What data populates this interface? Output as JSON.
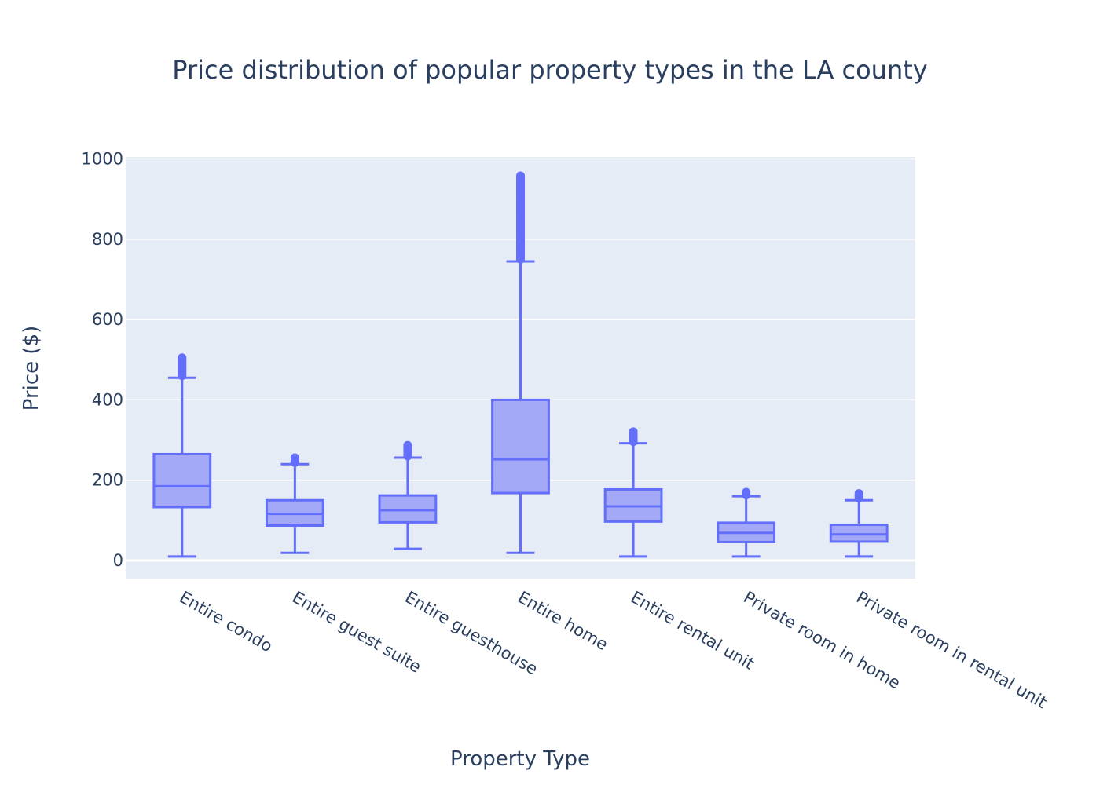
{
  "chart_data": {
    "type": "box",
    "title": "Price distribution of popular property types in the LA county",
    "xlabel": "Property Type",
    "ylabel": "Price ($)",
    "ylim": [
      -45,
      1005
    ],
    "yticks": [
      0,
      200,
      400,
      600,
      800,
      1000
    ],
    "grid": true,
    "legend": "none",
    "colors": {
      "plot_bg": "#E5ECF6",
      "box_line": "#636EFA",
      "box_fill": "#A3A9F6",
      "grid": "#ffffff",
      "text": "#2a3f5f"
    },
    "categories": [
      "Entire condo",
      "Entire guest suite",
      "Entire guesthouse",
      "Entire home",
      "Entire rental unit",
      "Private room in home",
      "Private room in rental unit"
    ],
    "boxes": [
      {
        "category": "Entire condo",
        "min": 10,
        "q1": 133,
        "median": 185,
        "q3": 265,
        "max": 455,
        "outliers_from": 460,
        "outliers_to": 505
      },
      {
        "category": "Entire guest suite",
        "min": 19,
        "q1": 87,
        "median": 116,
        "q3": 150,
        "max": 240,
        "outliers_from": 244,
        "outliers_to": 256
      },
      {
        "category": "Entire guesthouse",
        "min": 29,
        "q1": 95,
        "median": 125,
        "q3": 162,
        "max": 256,
        "outliers_from": 260,
        "outliers_to": 287
      },
      {
        "category": "Entire home",
        "min": 19,
        "q1": 168,
        "median": 252,
        "q3": 400,
        "max": 745,
        "outliers_from": 750,
        "outliers_to": 958
      },
      {
        "category": "Entire rental unit",
        "min": 10,
        "q1": 97,
        "median": 135,
        "q3": 177,
        "max": 292,
        "outliers_from": 296,
        "outliers_to": 321
      },
      {
        "category": "Private room in home",
        "min": 10,
        "q1": 46,
        "median": 69,
        "q3": 94,
        "max": 160,
        "outliers_from": 163,
        "outliers_to": 170
      },
      {
        "category": "Private room in rental unit",
        "min": 10,
        "q1": 47,
        "median": 65,
        "q3": 89,
        "max": 150,
        "outliers_from": 156,
        "outliers_to": 167
      }
    ]
  }
}
